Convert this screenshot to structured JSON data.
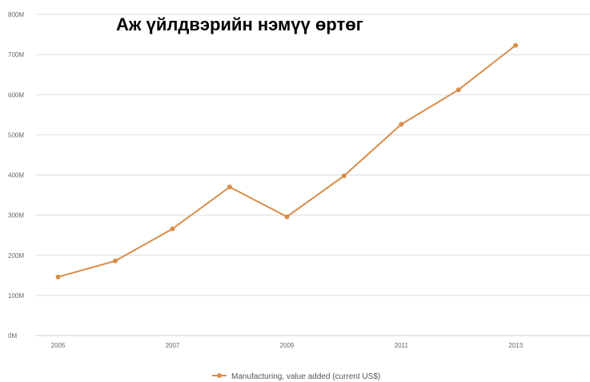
{
  "chart_data": {
    "type": "line",
    "title": "Аж үйлдвэрийн нэмүү өртөг",
    "x": [
      2005,
      2006,
      2007,
      2008,
      2009,
      2010,
      2011,
      2012,
      2013
    ],
    "x_tick_labels": [
      "2005",
      "2007",
      "2009",
      "2011",
      "2013"
    ],
    "y_tick_labels": [
      "0M",
      "100M",
      "200M",
      "300M",
      "400M",
      "500M",
      "600M",
      "700M",
      "800M"
    ],
    "ylim": [
      0,
      800000000
    ],
    "xlim": [
      2004.6,
      2014.3
    ],
    "grid": true,
    "legend_position": "bottom",
    "series": [
      {
        "name": "Manufacturing, value added (current US$)",
        "color": "#d98d4a",
        "values": [
          146000000,
          186000000,
          266000000,
          370000000,
          296000000,
          398000000,
          526000000,
          612000000,
          723000000
        ]
      }
    ]
  }
}
